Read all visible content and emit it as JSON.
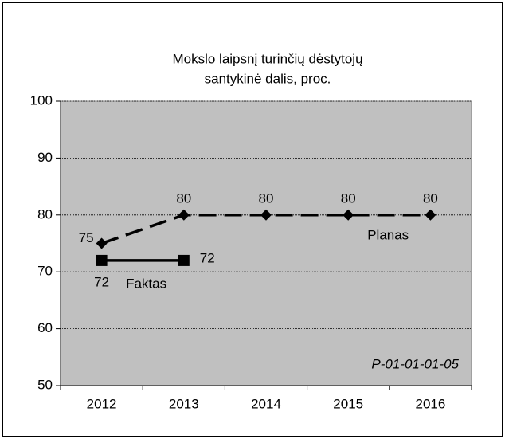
{
  "chart_data": {
    "type": "line",
    "title": [
      "Mokslo laipsnį turinčių dėstytojų",
      "santykinė dalis, proc."
    ],
    "annotation": "P-01-01-01-05",
    "categories": [
      "2012",
      "2013",
      "2014",
      "2015",
      "2016"
    ],
    "series": [
      {
        "name": "Planas",
        "color": "#000000",
        "marker": "diamond",
        "dash": true,
        "values": [
          75,
          80,
          80,
          80,
          80
        ]
      },
      {
        "name": "Faktas",
        "color": "#000000",
        "marker": "square",
        "dash": false,
        "values": [
          72,
          72,
          null,
          null,
          null
        ]
      }
    ],
    "ylim": [
      50,
      100
    ],
    "yticks": [
      50,
      60,
      70,
      80,
      90,
      100
    ],
    "grid": true,
    "plot_background": "#c0c0c0"
  }
}
